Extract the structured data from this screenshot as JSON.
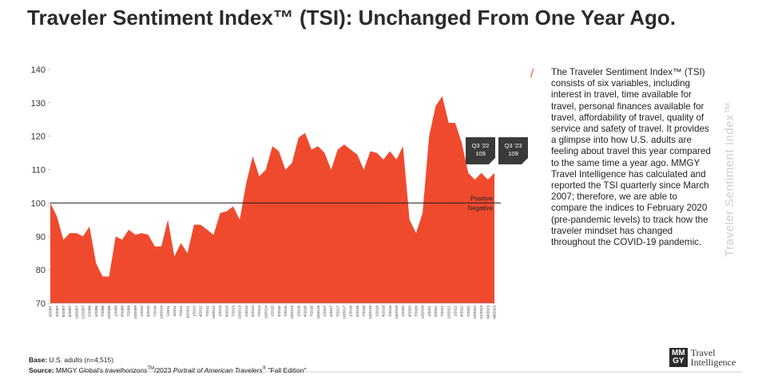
{
  "header": {
    "title": "Traveler Sentiment Index™ (TSI): Unchanged From One Year Ago."
  },
  "chart_data": {
    "type": "area",
    "color": "#f04a2e",
    "categories": [
      "3/2007",
      "4/2007",
      "6/2007",
      "8/2007",
      "10/2007",
      "12/2007",
      "2/2008",
      "4/2008",
      "7/2008",
      "10/2008",
      "1/2009",
      "4/2009",
      "7/2009",
      "10/2009",
      "1/2010",
      "4/2010",
      "7/2010",
      "10/2010",
      "1/2011",
      "4/2011",
      "7/2011",
      "10/2011",
      "1/2012",
      "4/2012",
      "7/2012",
      "10/2012",
      "1/2013",
      "4/2013",
      "7/2013",
      "10/2013",
      "1/2014",
      "4/2014",
      "7/2014",
      "10/2014",
      "1/2015",
      "4/2015",
      "7/2015",
      "10/2015",
      "1/2016",
      "4/2016",
      "7/2016",
      "10/2016",
      "1/2017",
      "4/2017",
      "7/2017",
      "10/2017",
      "1/2018",
      "4/2018",
      "7/2018",
      "10/2018",
      "1/2019",
      "4/2019",
      "7/2019",
      "10/2019",
      "1/2020",
      "4/2020",
      "7/2020",
      "10/2020",
      "1/2021",
      "4/2021",
      "7/2021",
      "10/2021",
      "1/2022",
      "4/2022",
      "7/2022",
      "10/2022",
      "01/2023",
      "04/2023",
      "08/2023"
    ],
    "values": [
      100,
      96,
      89,
      91,
      91,
      90,
      93,
      82,
      78,
      78,
      90,
      89,
      92,
      90.5,
      91,
      90.5,
      87,
      87,
      95,
      84,
      88,
      85,
      93.5,
      93.5,
      92,
      90.5,
      97,
      97.5,
      99,
      95,
      106,
      114,
      108,
      110,
      117,
      115.5,
      110,
      112,
      119.5,
      121,
      116,
      117,
      115,
      110,
      116,
      117.5,
      116,
      114.5,
      110,
      115.5,
      115,
      113,
      115.5,
      113,
      117,
      95,
      91,
      97,
      120,
      129,
      132,
      124,
      124,
      118,
      109,
      107,
      109,
      107,
      109
    ],
    "ylim": [
      70,
      140
    ],
    "yticks": [
      70,
      80,
      90,
      100,
      110,
      120,
      130,
      140
    ],
    "reference_line": {
      "value": 100,
      "above_label": "Positive",
      "below_label": "Negative"
    },
    "callouts": [
      {
        "label": "Q3 '22",
        "value": 109,
        "index": 64
      },
      {
        "label": "Q3 '23",
        "value": 109,
        "index": 68
      }
    ]
  },
  "side_text": {
    "slash": "/",
    "body": "The Traveler Sentiment Index™ (TSI) consists of six variables, including interest in travel, time available for travel, personal finances available for travel, affordability of travel, quality of service and safety of travel. It provides a glimpse into how U.S. adults are feeling about travel this year compared to the same time a year ago. MMGY Travel Intelligence has calculated and reported the TSI quarterly since March 2007; therefore, we are able to compare the indices to February 2020 (pre-pandemic levels) to track how the traveler mindset has changed throughout the COVID-19 pandemic.",
    "vertical": "Traveler Sentiment Index™"
  },
  "footer": {
    "base_label": "Base:",
    "base_text": " U.S. adults (n=4,515)",
    "source_label": "Source:",
    "source_1": " MMGY Global's ",
    "source_2": "travelhorizons",
    "source_3": "TM",
    "source_4": "/2023 ",
    "source_5": "Portrait of American Travelers",
    "source_6": "®",
    "source_7": " \"Fall Edition\""
  },
  "logo": {
    "mark_top": "MM",
    "mark_bottom": "GY",
    "line1": "Travel",
    "line2": "Intelligence"
  }
}
